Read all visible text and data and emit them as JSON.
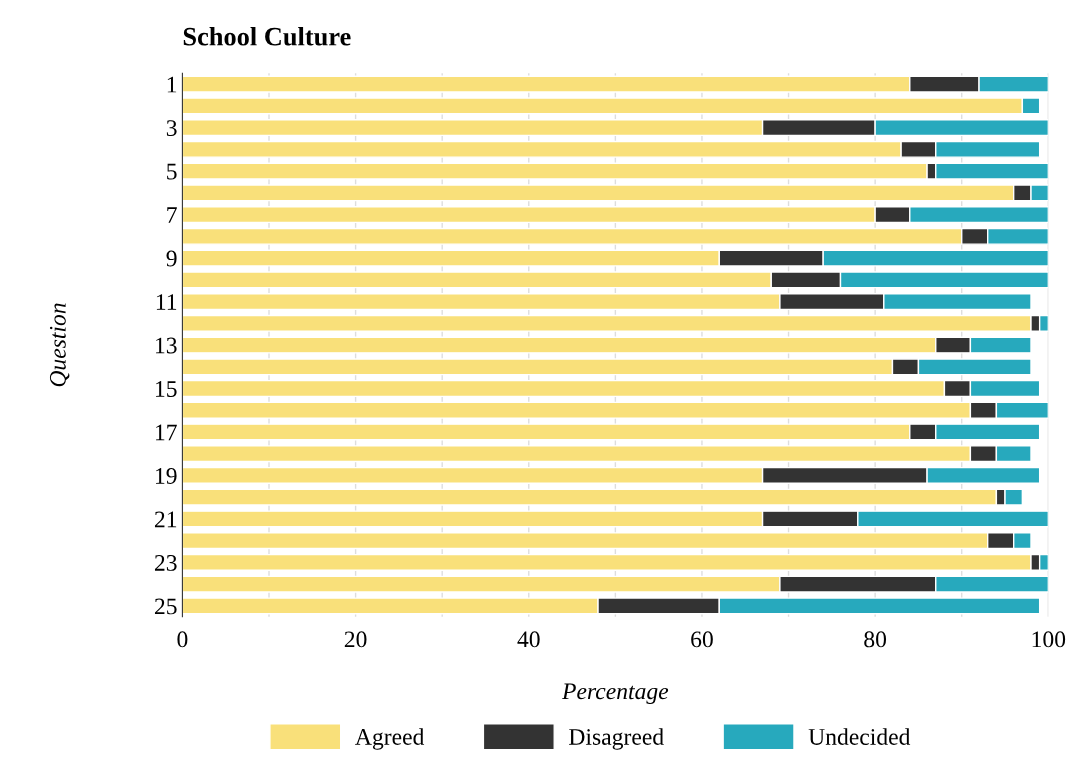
{
  "chart_data": {
    "type": "bar",
    "orientation": "horizontal",
    "stacked": true,
    "title": "School Culture",
    "xlabel": "Percentage",
    "ylabel": "Question",
    "categories": [
      "1",
      null,
      "3",
      null,
      "5",
      null,
      "7",
      null,
      "9",
      null,
      "11",
      null,
      "13",
      null,
      "15",
      null,
      "17",
      null,
      "19",
      null,
      "21",
      null,
      "23",
      null,
      "25"
    ],
    "series": [
      {
        "name": "Agreed",
        "color": "#f9e07a",
        "values": [
          84,
          97,
          67,
          83,
          86,
          96,
          80,
          90,
          62,
          68,
          69,
          98,
          87,
          82,
          88,
          91,
          84,
          91,
          67,
          94,
          67,
          93,
          98,
          69,
          48
        ]
      },
      {
        "name": "Disagreed",
        "color": "#333333",
        "values": [
          8,
          0,
          13,
          4,
          1,
          2,
          4,
          3,
          12,
          8,
          12,
          1,
          4,
          3,
          3,
          3,
          3,
          3,
          19,
          1,
          11,
          3,
          1,
          18,
          14
        ]
      },
      {
        "name": "Undecided",
        "color": "#27a9bd",
        "values": [
          8,
          2,
          20,
          12,
          13,
          2,
          16,
          7,
          26,
          24,
          17,
          1,
          7,
          13,
          8,
          6,
          12,
          4,
          13,
          2,
          22,
          2,
          1,
          13,
          37
        ]
      }
    ],
    "xlim": [
      0,
      100
    ],
    "xticks": [
      0,
      {
        "value": 10,
        "label": null
      },
      20,
      {
        "value": 30,
        "label": null
      },
      40,
      {
        "value": 50,
        "label": null
      },
      60,
      {
        "value": 70,
        "label": null
      },
      80,
      {
        "value": 90,
        "label": null
      },
      100
    ],
    "grid": "x",
    "legend": "bottom"
  }
}
